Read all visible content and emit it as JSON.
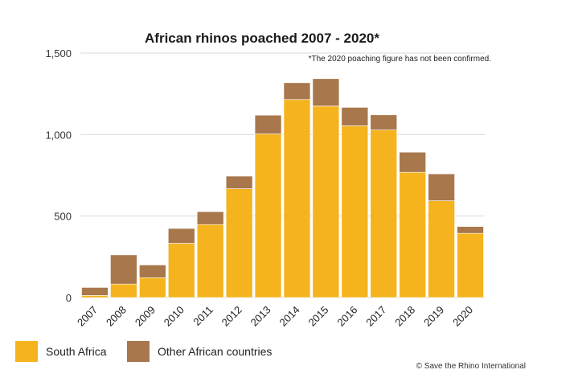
{
  "chart_data": {
    "type": "bar",
    "stacked": true,
    "title": "African rhinos poached 2007 - 2020*",
    "note": "*The 2020 poaching figure  has not been confirmed.",
    "categories": [
      "2007",
      "2008",
      "2009",
      "2010",
      "2011",
      "2012",
      "2013",
      "2014",
      "2015",
      "2016",
      "2017",
      "2018",
      "2019",
      "2020"
    ],
    "series": [
      {
        "name": "South Africa",
        "color": "#F5B41E",
        "values": [
          13,
          83,
          122,
          333,
          448,
          668,
          1004,
          1215,
          1175,
          1054,
          1028,
          769,
          594,
          394
        ]
      },
      {
        "name": "Other African countries",
        "color": "#A8774C",
        "values": [
          49,
          179,
          78,
          91,
          79,
          77,
          115,
          103,
          168,
          113,
          93,
          123,
          165,
          42
        ]
      }
    ],
    "ylim": [
      0,
      1500
    ],
    "yticks": [
      0,
      500,
      1000,
      1500
    ],
    "ytick_labels": [
      "0",
      "500",
      "1,000",
      "1,500"
    ],
    "grid": true,
    "legend_position": "bottom-left",
    "credit": "© Save the Rhino International"
  }
}
